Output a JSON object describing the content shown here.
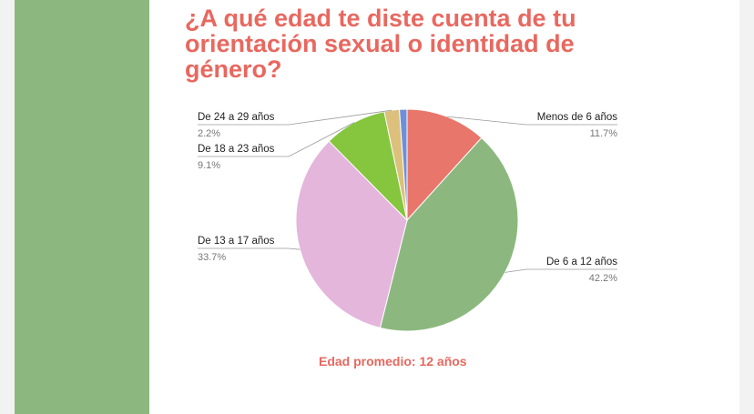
{
  "slide": {
    "title": "¿A qué edad te diste cuenta de tu orientación sexual o identidad de género?",
    "footnote": "Edad promedio: 12 años",
    "colors": {
      "title": "#e8685f",
      "band": "#8cb87f",
      "outer": "#f2f2f2"
    }
  },
  "chart_data": {
    "type": "pie",
    "title": "",
    "slices": [
      {
        "label": "Menos de 6 años",
        "value": 11.7,
        "pct_label": "11.7%",
        "color": "#e9766a"
      },
      {
        "label": "De 6 a 12 años",
        "value": 42.2,
        "pct_label": "42.2%",
        "color": "#8cb87f"
      },
      {
        "label": "De 13 a 17 años",
        "value": 33.7,
        "pct_label": "33.7%",
        "color": "#e4b6dc"
      },
      {
        "label": "De 18 a 23 años",
        "value": 9.1,
        "pct_label": "9.1%",
        "color": "#85c63e"
      },
      {
        "label": "De 24 a 29 años",
        "value": 2.2,
        "pct_label": "2.2%",
        "color": "#dcc07b"
      },
      {
        "label": "",
        "value": 1.1,
        "pct_label": "",
        "color": "#6f8fd8"
      }
    ],
    "start": "12 o'clock",
    "direction": "clockwise",
    "legend": "none (callout labels)"
  }
}
